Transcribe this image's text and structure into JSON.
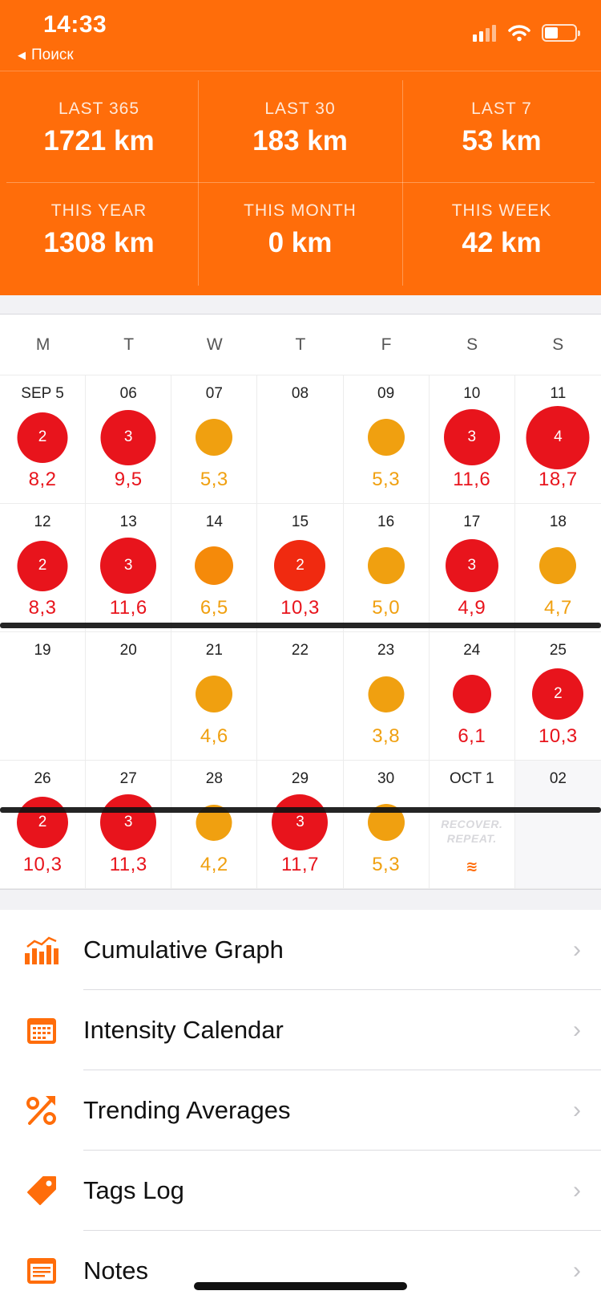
{
  "status_bar": {
    "time": "14:33",
    "back_label": "Поиск"
  },
  "stats": [
    {
      "label": "LAST 365",
      "value": "1721 km"
    },
    {
      "label": "LAST 30",
      "value": "183 km"
    },
    {
      "label": "LAST 7",
      "value": "53 km"
    },
    {
      "label": "THIS YEAR",
      "value": "1308 km"
    },
    {
      "label": "THIS MONTH",
      "value": "0 km"
    },
    {
      "label": "THIS WEEK",
      "value": "42 km"
    }
  ],
  "weekdays": [
    "M",
    "T",
    "W",
    "T",
    "F",
    "S",
    "S"
  ],
  "calendar": {
    "weeks": [
      [
        {
          "date": "SEP 5",
          "dist": "8,2",
          "count": "2",
          "color": "red"
        },
        {
          "date": "06",
          "dist": "9,5",
          "count": "3",
          "color": "red"
        },
        {
          "date": "07",
          "dist": "5,3",
          "count": "",
          "color": "amber"
        },
        {
          "date": "08",
          "dist": "",
          "count": "",
          "color": ""
        },
        {
          "date": "09",
          "dist": "5,3",
          "count": "",
          "color": "amber"
        },
        {
          "date": "10",
          "dist": "11,6",
          "count": "3",
          "color": "red"
        },
        {
          "date": "11",
          "dist": "18,7",
          "count": "4",
          "color": "red"
        }
      ],
      [
        {
          "date": "12",
          "dist": "8,3",
          "count": "2",
          "color": "red"
        },
        {
          "date": "13",
          "dist": "11,6",
          "count": "3",
          "color": "red"
        },
        {
          "date": "14",
          "dist": "6,5",
          "count": "",
          "color": "amber"
        },
        {
          "date": "15",
          "dist": "10,3",
          "count": "2",
          "color": "red"
        },
        {
          "date": "16",
          "dist": "5,0",
          "count": "",
          "color": "amber"
        },
        {
          "date": "17",
          "dist": "4,9",
          "count": "3",
          "color": "red"
        },
        {
          "date": "18",
          "dist": "4,7",
          "count": "",
          "color": "amber"
        }
      ],
      [
        {
          "date": "19",
          "dist": "",
          "count": "",
          "color": ""
        },
        {
          "date": "20",
          "dist": "",
          "count": "",
          "color": ""
        },
        {
          "date": "21",
          "dist": "4,6",
          "count": "",
          "color": "amber"
        },
        {
          "date": "22",
          "dist": "",
          "count": "",
          "color": ""
        },
        {
          "date": "23",
          "dist": "3,8",
          "count": "",
          "color": "amber"
        },
        {
          "date": "24",
          "dist": "6,1",
          "count": "",
          "color": "red"
        },
        {
          "date": "25",
          "dist": "10,3",
          "count": "2",
          "color": "red"
        }
      ],
      [
        {
          "date": "26",
          "dist": "10,3",
          "count": "2",
          "color": "red"
        },
        {
          "date": "27",
          "dist": "11,3",
          "count": "3",
          "color": "red"
        },
        {
          "date": "28",
          "dist": "4,2",
          "count": "",
          "color": "amber"
        },
        {
          "date": "29",
          "dist": "11,7",
          "count": "3",
          "color": "red"
        },
        {
          "date": "30",
          "dist": "5,3",
          "count": "",
          "color": "amber"
        },
        {
          "date": "OCT 1",
          "dist": "",
          "count": "",
          "color": ""
        },
        {
          "date": "02",
          "dist": "",
          "count": "",
          "color": ""
        }
      ]
    ],
    "recover_text_1": "RECOVER.",
    "recover_text_2": "REPEAT.",
    "run_icon_glyph": "≋"
  },
  "menu": [
    {
      "label": "Cumulative Graph",
      "icon": "bar-chart-icon"
    },
    {
      "label": "Intensity Calendar",
      "icon": "calendar-icon"
    },
    {
      "label": "Trending Averages",
      "icon": "percent-trend-icon"
    },
    {
      "label": "Tags Log",
      "icon": "tag-icon"
    },
    {
      "label": "Notes",
      "icon": "notes-icon"
    }
  ],
  "colors": {
    "accent": "#ff6d0a",
    "red": "#e8141c",
    "amber": "#f0a010"
  }
}
